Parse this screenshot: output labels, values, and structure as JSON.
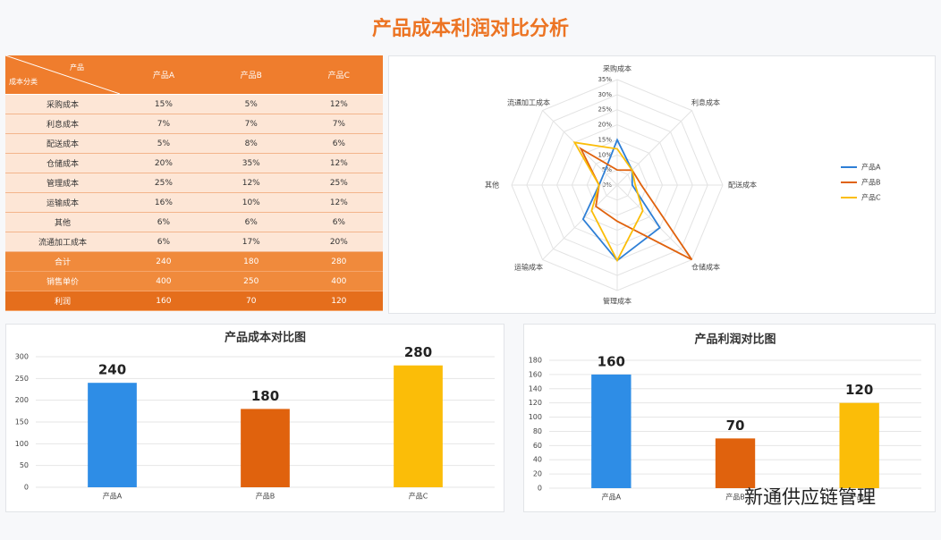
{
  "title": "产品成本利润对比分析",
  "table": {
    "corner": [
      "产品",
      "成本分类"
    ],
    "columns": [
      "产品A",
      "产品B",
      "产品C"
    ],
    "rows": [
      [
        "采购成本",
        "15%",
        "5%",
        "12%"
      ],
      [
        "利息成本",
        "7%",
        "7%",
        "7%"
      ],
      [
        "配送成本",
        "5%",
        "8%",
        "6%"
      ],
      [
        "仓储成本",
        "20%",
        "35%",
        "12%"
      ],
      [
        "管理成本",
        "25%",
        "12%",
        "25%"
      ],
      [
        "运输成本",
        "16%",
        "10%",
        "12%"
      ],
      [
        "其他",
        "6%",
        "6%",
        "6%"
      ],
      [
        "流通加工成本",
        "6%",
        "17%",
        "20%"
      ]
    ],
    "total_rows": [
      [
        "合计",
        240,
        180,
        280
      ],
      [
        "销售单价",
        400,
        250,
        400
      ],
      [
        "利润",
        160,
        70,
        120
      ]
    ]
  },
  "chart_data": [
    {
      "type": "radar",
      "categories": [
        "采购成本",
        "利息成本",
        "配送成本",
        "仓储成本",
        "管理成本",
        "运输成本",
        "其他",
        "流通加工成本"
      ],
      "ylim": [
        0,
        35
      ],
      "yticks": [
        {
          "value": 0,
          "label": "0%"
        },
        {
          "value": 5,
          "label": "5%"
        },
        {
          "value": 10,
          "label": "10%"
        },
        {
          "value": 15,
          "label": "15%"
        },
        {
          "value": 20,
          "label": "20%"
        },
        {
          "value": 25,
          "label": "25%"
        },
        {
          "value": 30,
          "label": "30%"
        },
        {
          "value": 35,
          "label": "35%"
        }
      ],
      "series": [
        {
          "name": "产品A",
          "color": "#2e7fd6",
          "values": [
            15,
            7,
            5,
            20,
            25,
            16,
            6,
            6
          ]
        },
        {
          "name": "产品B",
          "color": "#e0620d",
          "values": [
            5,
            7,
            8,
            35,
            12,
            10,
            6,
            17
          ]
        },
        {
          "name": "产品C",
          "color": "#fbbd08",
          "values": [
            12,
            7,
            6,
            12,
            25,
            12,
            6,
            20
          ]
        }
      ],
      "legend": "right"
    },
    {
      "type": "bar",
      "title": "产品成本对比图",
      "categories": [
        "产品A",
        "产品B",
        "产品C"
      ],
      "values": [
        240,
        180,
        280
      ],
      "colors": [
        "#2e8de6",
        "#e0620d",
        "#fbbd08"
      ],
      "ylim": [
        0,
        300
      ],
      "yticks": [
        0,
        50,
        100,
        150,
        200,
        250,
        300
      ],
      "grid": true
    },
    {
      "type": "bar",
      "title": "产品利润对比图",
      "categories": [
        "产品A",
        "产品B",
        "产品C"
      ],
      "values": [
        160,
        70,
        120
      ],
      "colors": [
        "#2e8de6",
        "#e0620d",
        "#fbbd08"
      ],
      "ylim": [
        0,
        180
      ],
      "yticks": [
        0,
        20,
        40,
        60,
        80,
        100,
        120,
        140,
        160,
        180
      ],
      "grid": true
    }
  ],
  "watermark": "新通供应链管理"
}
